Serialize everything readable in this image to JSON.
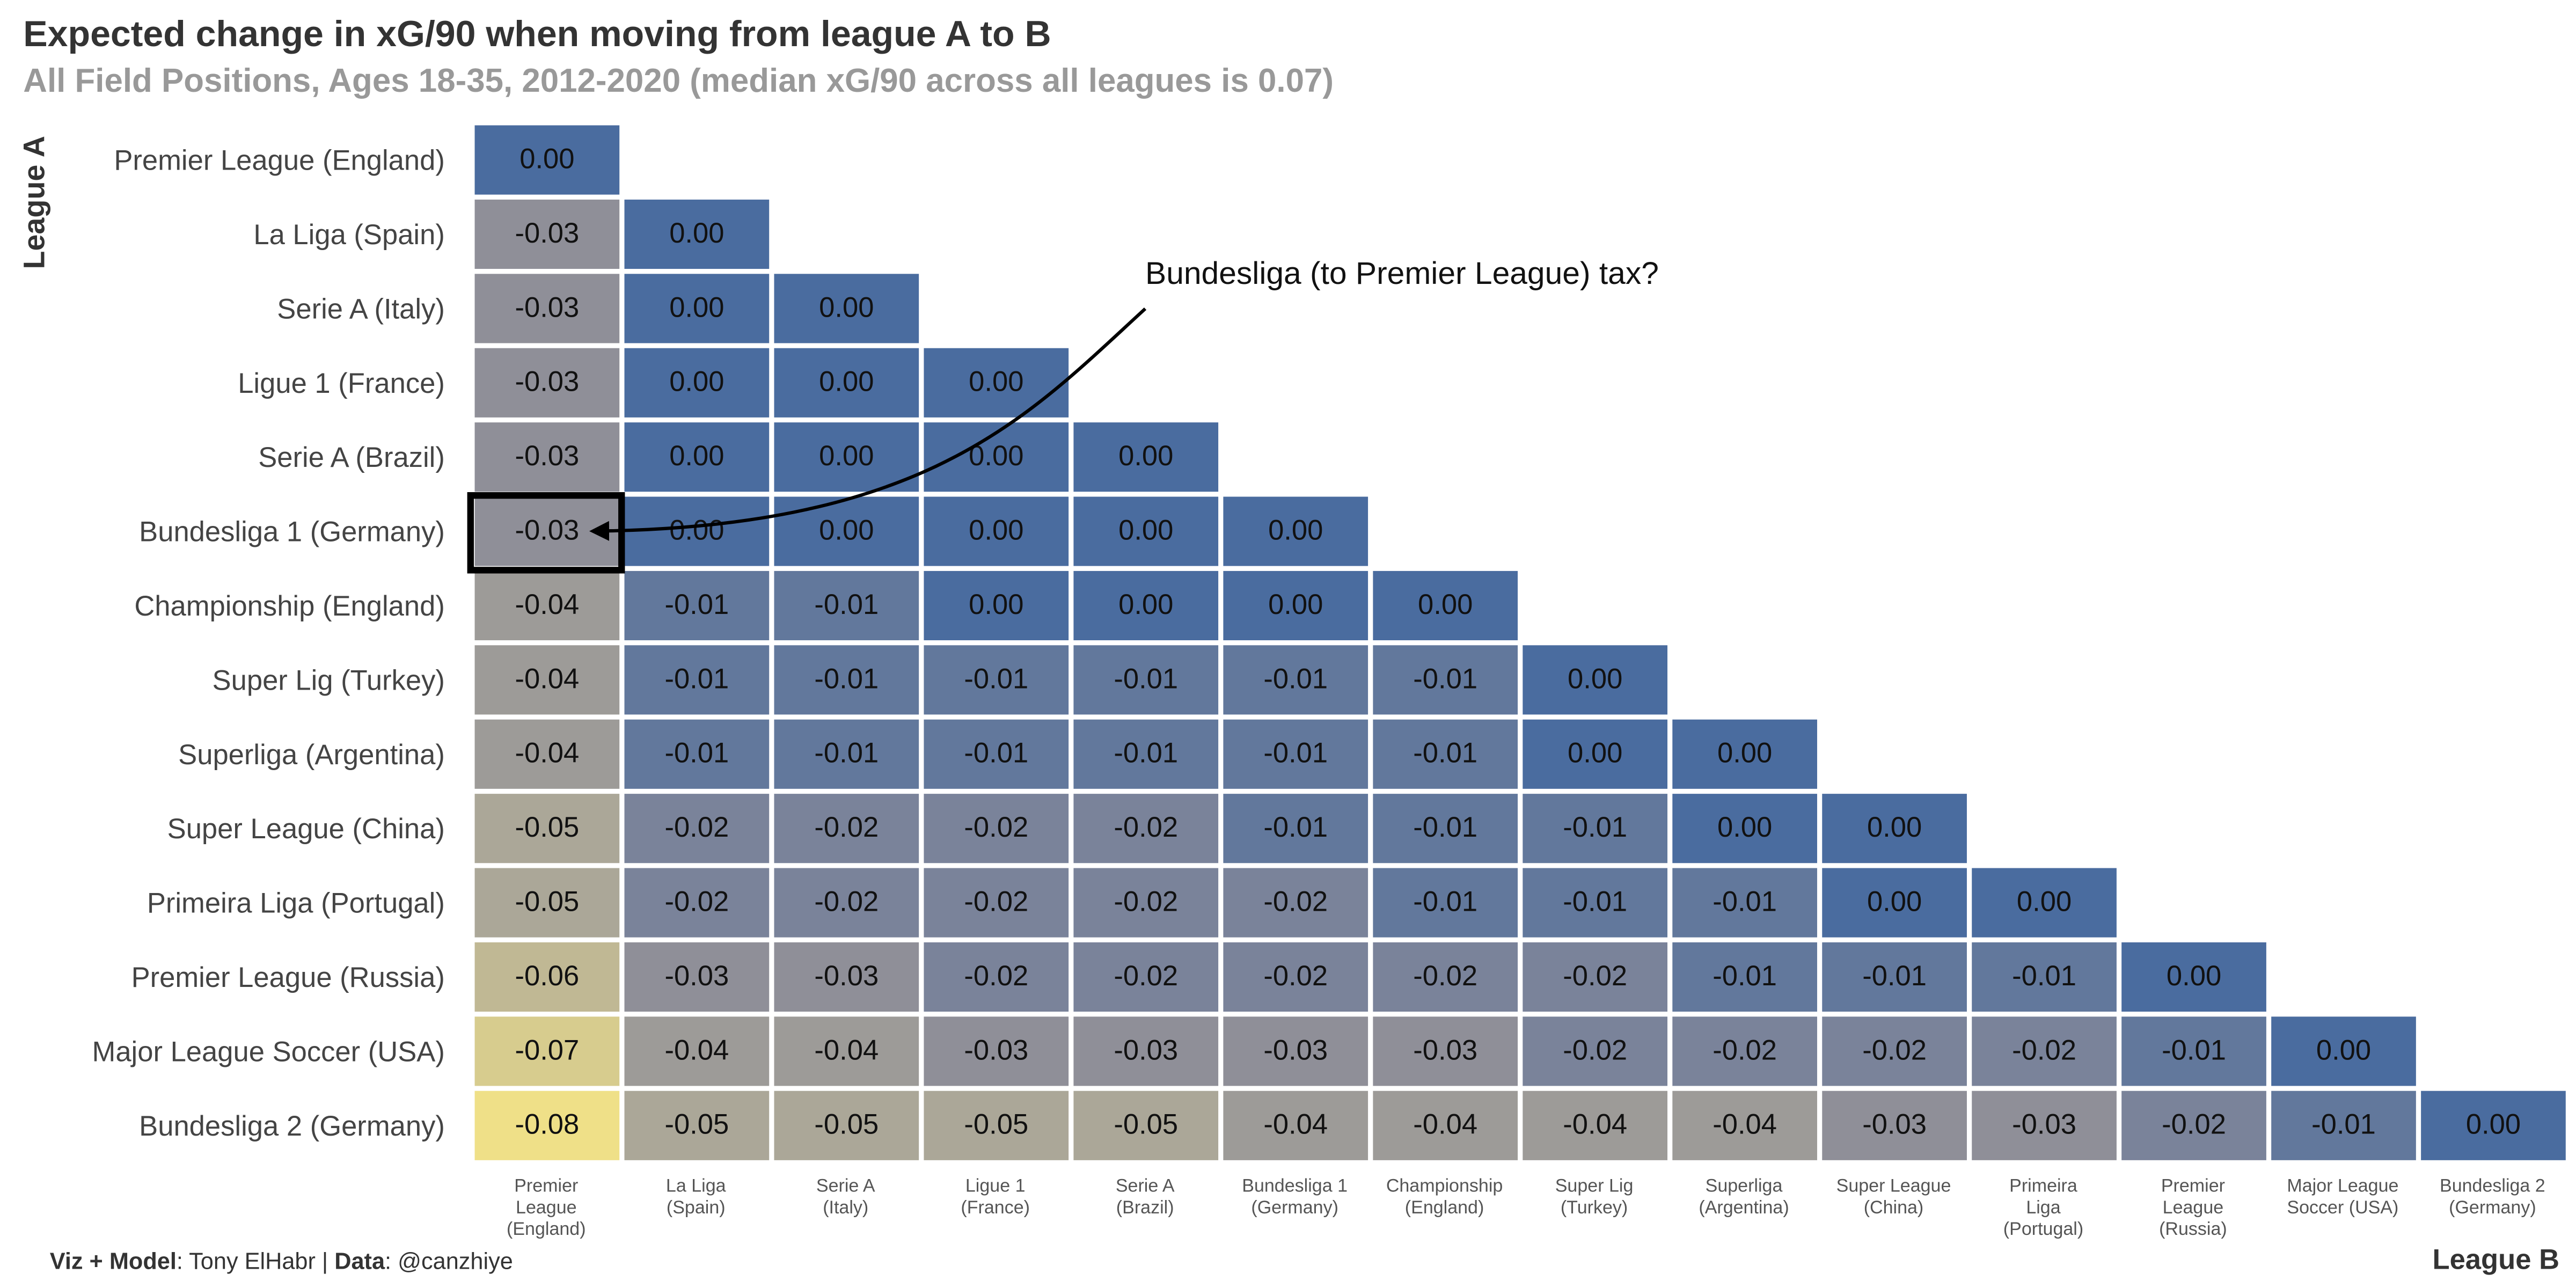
{
  "chart_data": {
    "type": "heatmap",
    "title": "Expected change in xG/90 when moving from league A to B",
    "subtitle": "All Field Positions, Ages 18-35, 2012-2020 (median xG/90 across all leagues is 0.07)",
    "y_label": "League A",
    "x_label": "League B",
    "rows": [
      "Premier League (England)",
      "La Liga (Spain)",
      "Serie A (Italy)",
      "Ligue 1 (France)",
      "Serie A (Brazil)",
      "Bundesliga 1 (Germany)",
      "Championship (England)",
      "Super Lig (Turkey)",
      "Superliga (Argentina)",
      "Super League (China)",
      "Primeira Liga (Portugal)",
      "Premier League (Russia)",
      "Major League Soccer (USA)",
      "Bundesliga 2 (Germany)"
    ],
    "categories": [
      "Premier\nLeague\n(England)",
      "La Liga\n(Spain)",
      "Serie A\n(Italy)",
      "Ligue 1\n(France)",
      "Serie A\n(Brazil)",
      "Bundesliga 1\n(Germany)",
      "Championship\n(England)",
      "Super Lig\n(Turkey)",
      "Superliga\n(Argentina)",
      "Super League\n(China)",
      "Primeira\nLiga\n(Portugal)",
      "Premier\nLeague\n(Russia)",
      "Major League\nSoccer (USA)",
      "Bundesliga 2\n(Germany)"
    ],
    "values": [
      [
        0,
        null,
        null,
        null,
        null,
        null,
        null,
        null,
        null,
        null,
        null,
        null,
        null,
        null
      ],
      [
        -0.03,
        0,
        null,
        null,
        null,
        null,
        null,
        null,
        null,
        null,
        null,
        null,
        null,
        null
      ],
      [
        -0.03,
        0,
        0,
        null,
        null,
        null,
        null,
        null,
        null,
        null,
        null,
        null,
        null,
        null
      ],
      [
        -0.03,
        0,
        0,
        0,
        null,
        null,
        null,
        null,
        null,
        null,
        null,
        null,
        null,
        null
      ],
      [
        -0.03,
        0,
        0,
        0,
        0,
        null,
        null,
        null,
        null,
        null,
        null,
        null,
        null,
        null
      ],
      [
        -0.03,
        0,
        0,
        0,
        0,
        0,
        null,
        null,
        null,
        null,
        null,
        null,
        null,
        null
      ],
      [
        -0.04,
        -0.01,
        -0.01,
        0,
        0,
        0,
        0,
        null,
        null,
        null,
        null,
        null,
        null,
        null
      ],
      [
        -0.04,
        -0.01,
        -0.01,
        -0.01,
        -0.01,
        -0.01,
        -0.01,
        0,
        null,
        null,
        null,
        null,
        null,
        null
      ],
      [
        -0.04,
        -0.01,
        -0.01,
        -0.01,
        -0.01,
        -0.01,
        -0.01,
        0,
        0,
        null,
        null,
        null,
        null,
        null
      ],
      [
        -0.05,
        -0.02,
        -0.02,
        -0.02,
        -0.02,
        -0.01,
        -0.01,
        -0.01,
        0,
        0,
        null,
        null,
        null,
        null
      ],
      [
        -0.05,
        -0.02,
        -0.02,
        -0.02,
        -0.02,
        -0.02,
        -0.01,
        -0.01,
        -0.01,
        0,
        0,
        null,
        null,
        null
      ],
      [
        -0.06,
        -0.03,
        -0.03,
        -0.02,
        -0.02,
        -0.02,
        -0.02,
        -0.02,
        -0.01,
        -0.01,
        -0.01,
        0,
        null,
        null
      ],
      [
        -0.07,
        -0.04,
        -0.04,
        -0.03,
        -0.03,
        -0.03,
        -0.03,
        -0.02,
        -0.02,
        -0.02,
        -0.02,
        -0.01,
        0,
        null
      ],
      [
        -0.08,
        -0.05,
        -0.05,
        -0.05,
        -0.05,
        -0.04,
        -0.04,
        -0.04,
        -0.04,
        -0.03,
        -0.03,
        -0.02,
        -0.01,
        0
      ]
    ],
    "value_labels": [
      [
        "0.00",
        null,
        null,
        null,
        null,
        null,
        null,
        null,
        null,
        null,
        null,
        null,
        null,
        null
      ],
      [
        "-0.03",
        "0.00",
        null,
        null,
        null,
        null,
        null,
        null,
        null,
        null,
        null,
        null,
        null,
        null
      ],
      [
        "-0.03",
        "0.00",
        "0.00",
        null,
        null,
        null,
        null,
        null,
        null,
        null,
        null,
        null,
        null,
        null
      ],
      [
        "-0.03",
        "0.00",
        "0.00",
        "0.00",
        null,
        null,
        null,
        null,
        null,
        null,
        null,
        null,
        null,
        null
      ],
      [
        "-0.03",
        "0.00",
        "0.00",
        "0.00",
        "0.00",
        null,
        null,
        null,
        null,
        null,
        null,
        null,
        null,
        null
      ],
      [
        "-0.03",
        "0.00",
        "0.00",
        "0.00",
        "0.00",
        "0.00",
        null,
        null,
        null,
        null,
        null,
        null,
        null,
        null
      ],
      [
        "-0.04",
        "-0.01",
        "-0.01",
        "0.00",
        "0.00",
        "0.00",
        "0.00",
        null,
        null,
        null,
        null,
        null,
        null,
        null
      ],
      [
        "-0.04",
        "-0.01",
        "-0.01",
        "-0.01",
        "-0.01",
        "-0.01",
        "-0.01",
        "0.00",
        null,
        null,
        null,
        null,
        null,
        null
      ],
      [
        "-0.04",
        "-0.01",
        "-0.01",
        "-0.01",
        "-0.01",
        "-0.01",
        "-0.01",
        "0.00",
        "0.00",
        null,
        null,
        null,
        null,
        null
      ],
      [
        "-0.05",
        "-0.02",
        "-0.02",
        "-0.02",
        "-0.02",
        "-0.01",
        "-0.01",
        "-0.01",
        "0.00",
        "0.00",
        null,
        null,
        null,
        null
      ],
      [
        "-0.05",
        "-0.02",
        "-0.02",
        "-0.02",
        "-0.02",
        "-0.02",
        "-0.01",
        "-0.01",
        "-0.01",
        "0.00",
        "0.00",
        null,
        null,
        null
      ],
      [
        "-0.06",
        "-0.03",
        "-0.03",
        "-0.02",
        "-0.02",
        "-0.02",
        "-0.02",
        "-0.02",
        "-0.01",
        "-0.01",
        "-0.01",
        "0.00",
        null,
        null
      ],
      [
        "-0.07",
        "-0.04",
        "-0.04",
        "-0.03",
        "-0.03",
        "-0.03",
        "-0.03",
        "-0.02",
        "-0.02",
        "-0.02",
        "-0.02",
        "-0.01",
        "0.00",
        null
      ],
      [
        "-0.08",
        "-0.05",
        "-0.05",
        "-0.05",
        "-0.05",
        "-0.04",
        "-0.04",
        "-0.04",
        "-0.04",
        "-0.03",
        "-0.03",
        "-0.02",
        "-0.01",
        "0.00"
      ]
    ],
    "colors": [
      "#efe088",
      "#b0ab98",
      "#8a8b98",
      "#4a6c9f"
    ],
    "annotation": "Bundesliga (to Premier League) tax?",
    "caption": [
      "Viz + Model",
      ": Tony ElHabr | ",
      "Data",
      ": @canzhiye"
    ]
  }
}
